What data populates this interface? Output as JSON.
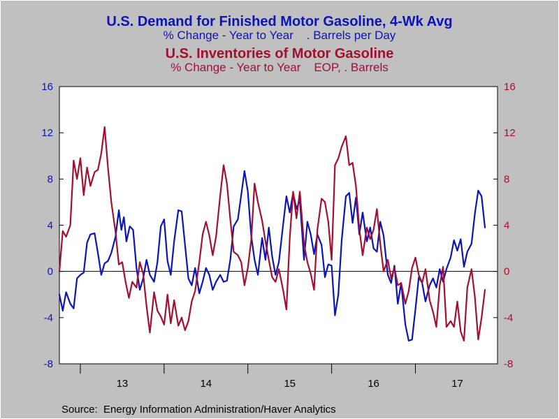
{
  "titles": {
    "line1": "U.S. Demand for Finished Motor Gasoline, 4-Wk Avg",
    "line1_sub": "% Change - Year to Year    . Barrels per Day",
    "line2": "U.S. Inventories of Motor Gasoline",
    "line2_sub": "% Change - Year to Year    EOP, . Barrels"
  },
  "source": "Source:  Energy Information Administration/Haver Analytics",
  "colors": {
    "background": "#c0c0c0",
    "plot_background": "#ffffff",
    "demand": "#0b15b5",
    "inventories": "#a3102f",
    "zero_line": "#000000"
  },
  "chart_data": {
    "type": "line",
    "xlabel": "",
    "ylabel": "",
    "x_unit": "year (decimal)",
    "xlim": [
      2012.75,
      2017.98
    ],
    "ylim": [
      -8,
      16
    ],
    "y_ticks": [
      "16",
      "12",
      "8",
      "4",
      "0",
      "-4",
      "-8"
    ],
    "y_ticks_right": [
      "16",
      "12",
      "8",
      "4",
      "0",
      "-4",
      "-8"
    ],
    "x_tick_boundaries": [
      2013.0,
      2014.0,
      2015.0,
      2016.0,
      2017.0
    ],
    "x_year_labels": [
      {
        "label": "13",
        "center": 2013.5
      },
      {
        "label": "14",
        "center": 2014.5
      },
      {
        "label": "15",
        "center": 2015.5
      },
      {
        "label": "16",
        "center": 2016.5
      },
      {
        "label": "17",
        "center": 2017.5
      }
    ],
    "zero_line": true,
    "grid": false,
    "series": [
      {
        "key": "demand",
        "axis": "left",
        "points": [
          [
            2012.75,
            -2.0
          ],
          [
            2012.79,
            -3.4
          ],
          [
            2012.83,
            -1.8
          ],
          [
            2012.88,
            -2.8
          ],
          [
            2012.92,
            -3.2
          ],
          [
            2012.96,
            -0.6
          ],
          [
            2013.0,
            -0.3
          ],
          [
            2013.04,
            -0.1
          ],
          [
            2013.08,
            2.5
          ],
          [
            2013.12,
            3.2
          ],
          [
            2013.17,
            3.3
          ],
          [
            2013.21,
            1.6
          ],
          [
            2013.25,
            -0.3
          ],
          [
            2013.29,
            0.7
          ],
          [
            2013.33,
            0.9
          ],
          [
            2013.37,
            1.6
          ],
          [
            2013.42,
            3.0
          ],
          [
            2013.46,
            5.3
          ],
          [
            2013.49,
            3.6
          ],
          [
            2013.52,
            4.7
          ],
          [
            2013.55,
            2.6
          ],
          [
            2013.59,
            3.9
          ],
          [
            2013.63,
            3.6
          ],
          [
            2013.67,
            0.3
          ],
          [
            2013.71,
            -1.6
          ],
          [
            2013.75,
            -0.6
          ],
          [
            2013.79,
            1.0
          ],
          [
            2013.83,
            -0.3
          ],
          [
            2013.88,
            -0.9
          ],
          [
            2013.92,
            0.8
          ],
          [
            2013.96,
            3.9
          ],
          [
            2014.0,
            4.5
          ],
          [
            2014.04,
            0.9
          ],
          [
            2014.08,
            -0.3
          ],
          [
            2014.12,
            2.6
          ],
          [
            2014.17,
            5.3
          ],
          [
            2014.21,
            5.2
          ],
          [
            2014.25,
            2.3
          ],
          [
            2014.29,
            -0.6
          ],
          [
            2014.33,
            -1.2
          ],
          [
            2014.37,
            0.3
          ],
          [
            2014.42,
            -1.9
          ],
          [
            2014.46,
            -0.9
          ],
          [
            2014.5,
            0.3
          ],
          [
            2014.54,
            -0.3
          ],
          [
            2014.58,
            -1.6
          ],
          [
            2014.62,
            -0.9
          ],
          [
            2014.67,
            -0.3
          ],
          [
            2014.71,
            -0.9
          ],
          [
            2014.75,
            -0.8
          ],
          [
            2014.79,
            1.0
          ],
          [
            2014.83,
            3.9
          ],
          [
            2014.88,
            4.5
          ],
          [
            2014.92,
            6.6
          ],
          [
            2014.96,
            8.7
          ],
          [
            2015.0,
            6.9
          ],
          [
            2015.04,
            3.1
          ],
          [
            2015.08,
            1.0
          ],
          [
            2015.12,
            -0.3
          ],
          [
            2015.17,
            2.9
          ],
          [
            2015.21,
            1.0
          ],
          [
            2015.25,
            3.8
          ],
          [
            2015.29,
            1.3
          ],
          [
            2015.33,
            -0.3
          ],
          [
            2015.37,
            0.8
          ],
          [
            2015.42,
            4.0
          ],
          [
            2015.46,
            6.5
          ],
          [
            2015.5,
            5.1
          ],
          [
            2015.54,
            6.8
          ],
          [
            2015.58,
            5.4
          ],
          [
            2015.62,
            6.2
          ],
          [
            2015.67,
            1.0
          ],
          [
            2015.71,
            4.3
          ],
          [
            2015.75,
            3.2
          ],
          [
            2015.79,
            1.5
          ],
          [
            2015.83,
            3.2
          ],
          [
            2015.88,
            2.3
          ],
          [
            2015.92,
            -0.5
          ],
          [
            2015.96,
            0.6
          ],
          [
            2016.0,
            0.5
          ],
          [
            2016.04,
            -3.8
          ],
          [
            2016.08,
            -2.0
          ],
          [
            2016.12,
            2.7
          ],
          [
            2016.17,
            6.5
          ],
          [
            2016.21,
            6.8
          ],
          [
            2016.25,
            4.2
          ],
          [
            2016.29,
            6.4
          ],
          [
            2016.33,
            3.2
          ],
          [
            2016.37,
            5.1
          ],
          [
            2016.42,
            2.6
          ],
          [
            2016.46,
            3.8
          ],
          [
            2016.5,
            2.0
          ],
          [
            2016.54,
            1.7
          ],
          [
            2016.58,
            4.3
          ],
          [
            2016.62,
            3.1
          ],
          [
            2016.67,
            -0.3
          ],
          [
            2016.71,
            -1.0
          ],
          [
            2016.75,
            0.5
          ],
          [
            2016.79,
            -2.8
          ],
          [
            2016.83,
            -1.0
          ],
          [
            2016.88,
            -4.6
          ],
          [
            2016.92,
            -6.0
          ],
          [
            2016.96,
            -5.9
          ],
          [
            2017.0,
            -3.3
          ],
          [
            2017.04,
            -0.5
          ],
          [
            2017.08,
            -1.0
          ],
          [
            2017.12,
            -2.6
          ],
          [
            2017.17,
            -1.2
          ],
          [
            2017.21,
            -0.6
          ],
          [
            2017.25,
            -1.4
          ],
          [
            2017.29,
            0.2
          ],
          [
            2017.33,
            -0.9
          ],
          [
            2017.37,
            0.2
          ],
          [
            2017.42,
            1.2
          ],
          [
            2017.46,
            2.7
          ],
          [
            2017.5,
            1.8
          ],
          [
            2017.54,
            2.8
          ],
          [
            2017.58,
            0.4
          ],
          [
            2017.62,
            1.7
          ],
          [
            2017.67,
            2.4
          ],
          [
            2017.71,
            5.0
          ],
          [
            2017.75,
            7.0
          ],
          [
            2017.79,
            6.5
          ],
          [
            2017.83,
            3.8
          ]
        ]
      },
      {
        "key": "inventories",
        "axis": "right",
        "points": [
          [
            2012.75,
            0.0
          ],
          [
            2012.79,
            3.5
          ],
          [
            2012.83,
            3.0
          ],
          [
            2012.88,
            4.0
          ],
          [
            2012.92,
            9.6
          ],
          [
            2012.96,
            8.0
          ],
          [
            2013.0,
            9.8
          ],
          [
            2013.04,
            6.6
          ],
          [
            2013.08,
            9.0
          ],
          [
            2013.12,
            7.4
          ],
          [
            2013.17,
            8.6
          ],
          [
            2013.21,
            8.8
          ],
          [
            2013.25,
            10.2
          ],
          [
            2013.29,
            12.5
          ],
          [
            2013.33,
            9.0
          ],
          [
            2013.37,
            6.0
          ],
          [
            2013.42,
            3.4
          ],
          [
            2013.46,
            0.6
          ],
          [
            2013.5,
            0.8
          ],
          [
            2013.54,
            -0.9
          ],
          [
            2013.58,
            -2.3
          ],
          [
            2013.62,
            -0.9
          ],
          [
            2013.67,
            -1.4
          ],
          [
            2013.71,
            0.8
          ],
          [
            2013.75,
            -0.2
          ],
          [
            2013.79,
            -3.0
          ],
          [
            2013.83,
            -5.3
          ],
          [
            2013.88,
            -1.8
          ],
          [
            2013.92,
            -3.4
          ],
          [
            2013.96,
            -3.9
          ],
          [
            2014.0,
            -4.6
          ],
          [
            2014.04,
            -2.0
          ],
          [
            2014.08,
            -4.5
          ],
          [
            2014.12,
            -2.5
          ],
          [
            2014.17,
            -4.7
          ],
          [
            2014.21,
            -4.0
          ],
          [
            2014.25,
            -5.1
          ],
          [
            2014.29,
            -4.3
          ],
          [
            2014.33,
            -2.6
          ],
          [
            2014.37,
            -1.7
          ],
          [
            2014.42,
            0.8
          ],
          [
            2014.46,
            3.2
          ],
          [
            2014.5,
            4.3
          ],
          [
            2014.54,
            3.1
          ],
          [
            2014.58,
            1.4
          ],
          [
            2014.62,
            3.0
          ],
          [
            2014.67,
            6.6
          ],
          [
            2014.71,
            9.2
          ],
          [
            2014.75,
            7.6
          ],
          [
            2014.79,
            4.5
          ],
          [
            2014.83,
            1.7
          ],
          [
            2014.88,
            1.4
          ],
          [
            2014.92,
            0.8
          ],
          [
            2014.96,
            -1.2
          ],
          [
            2015.0,
            0.3
          ],
          [
            2015.04,
            2.7
          ],
          [
            2015.08,
            7.6
          ],
          [
            2015.12,
            6.0
          ],
          [
            2015.17,
            4.4
          ],
          [
            2015.21,
            2.6
          ],
          [
            2015.25,
            1.0
          ],
          [
            2015.29,
            -0.5
          ],
          [
            2015.33,
            -0.9
          ],
          [
            2015.37,
            0.2
          ],
          [
            2015.42,
            -1.6
          ],
          [
            2015.46,
            -3.3
          ],
          [
            2015.5,
            2.9
          ],
          [
            2015.54,
            6.9
          ],
          [
            2015.58,
            4.6
          ],
          [
            2015.62,
            6.9
          ],
          [
            2015.67,
            2.4
          ],
          [
            2015.71,
            0.8
          ],
          [
            2015.75,
            -0.2
          ],
          [
            2015.79,
            -1.6
          ],
          [
            2015.83,
            3.6
          ],
          [
            2015.88,
            6.3
          ],
          [
            2015.92,
            6.0
          ],
          [
            2015.96,
            4.3
          ],
          [
            2016.0,
            1.0
          ],
          [
            2016.04,
            9.2
          ],
          [
            2016.08,
            9.8
          ],
          [
            2016.12,
            10.8
          ],
          [
            2016.17,
            11.7
          ],
          [
            2016.21,
            9.2
          ],
          [
            2016.25,
            9.4
          ],
          [
            2016.29,
            7.4
          ],
          [
            2016.33,
            3.7
          ],
          [
            2016.37,
            1.4
          ],
          [
            2016.42,
            3.8
          ],
          [
            2016.46,
            2.8
          ],
          [
            2016.5,
            3.6
          ],
          [
            2016.54,
            5.4
          ],
          [
            2016.58,
            2.4
          ],
          [
            2016.62,
            0.0
          ],
          [
            2016.67,
            1.0
          ],
          [
            2016.71,
            -0.6
          ],
          [
            2016.75,
            0.3
          ],
          [
            2016.79,
            -1.2
          ],
          [
            2016.83,
            -1.0
          ],
          [
            2016.88,
            -2.8
          ],
          [
            2016.92,
            -1.7
          ],
          [
            2016.96,
            0.3
          ],
          [
            2017.0,
            1.2
          ],
          [
            2017.04,
            -0.3
          ],
          [
            2017.08,
            -1.0
          ],
          [
            2017.12,
            0.2
          ],
          [
            2017.17,
            -2.5
          ],
          [
            2017.21,
            -3.5
          ],
          [
            2017.25,
            -4.8
          ],
          [
            2017.29,
            -1.2
          ],
          [
            2017.33,
            0.4
          ],
          [
            2017.37,
            -4.8
          ],
          [
            2017.42,
            -4.3
          ],
          [
            2017.46,
            -4.8
          ],
          [
            2017.5,
            -2.6
          ],
          [
            2017.54,
            -5.2
          ],
          [
            2017.58,
            -6.0
          ],
          [
            2017.62,
            -1.4
          ],
          [
            2017.67,
            0.2
          ],
          [
            2017.71,
            -2.2
          ],
          [
            2017.75,
            -5.9
          ],
          [
            2017.79,
            -4.0
          ],
          [
            2017.83,
            -1.6
          ]
        ]
      }
    ]
  }
}
